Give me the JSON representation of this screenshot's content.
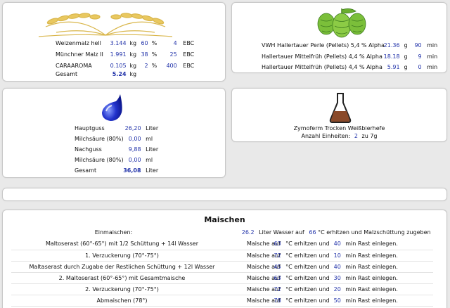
{
  "malt": {
    "rows": [
      {
        "name": "Weizenmalz hell",
        "amount": "3.144",
        "unit": "kg",
        "percent": "60",
        "pct": "%",
        "ebc": "4",
        "ebc_unit": "EBC"
      },
      {
        "name": "Münchner Malz II",
        "amount": "1.991",
        "unit": "kg",
        "percent": "38",
        "pct": "%",
        "ebc": "25",
        "ebc_unit": "EBC"
      },
      {
        "name": "CARAAROMA",
        "amount": "0.105",
        "unit": "kg",
        "percent": "2",
        "pct": "%",
        "ebc": "400",
        "ebc_unit": "EBC"
      }
    ],
    "total_label": "Gesamt",
    "total_value": "5.24",
    "total_unit": "kg"
  },
  "hops": {
    "rows": [
      {
        "name": "VWH Hallertauer Perle (Pellets) 5,4 % Alpha",
        "amount": "21.36",
        "unit": "g",
        "time": "90",
        "time_unit": "min"
      },
      {
        "name": "Hallertauer Mittelfrüh (Pellets) 4,4 % Alpha",
        "amount": "18.18",
        "unit": "g",
        "time": "9",
        "time_unit": "min"
      },
      {
        "name": "Hallertauer Mittelfrüh (Pellets) 4,4 % Alpha",
        "amount": "5.91",
        "unit": "g",
        "time": "0",
        "time_unit": "min"
      }
    ]
  },
  "water": {
    "rows": [
      {
        "label": "Hauptguss",
        "value": "26,20",
        "unit": "Liter"
      },
      {
        "label": "Milchsäure (80%)",
        "value": "0,00",
        "unit": "ml"
      },
      {
        "label": "Nachguss",
        "value": "9,88",
        "unit": "Liter"
      },
      {
        "label": "Milchsäure (80%)",
        "value": "0,00",
        "unit": "ml"
      }
    ],
    "total_label": "Gesamt",
    "total_value": "36,08",
    "total_unit": "Liter"
  },
  "yeast": {
    "name": "Zymoferm Trocken Weißbierhefe",
    "units_label": "Anzahl Einheiten:",
    "units_value": "2",
    "units_suffix": "zu 7g"
  },
  "mash": {
    "title": "Maischen",
    "einmaischen_label": "Einmaischen:",
    "einmaischen_amount": "26.2",
    "einmaischen_text1": "Liter Wasser auf",
    "einmaischen_temp": "66",
    "einmaischen_text2": "°C erhitzen und Malzschüttung zugeben",
    "steps": [
      {
        "name": "Maltoserast (60°-65°) mit 1/2 Schüttung + 14l Wasser",
        "prefix": "Maische auf",
        "temp": "63",
        "mid": "°C erhitzen und",
        "time": "40",
        "suffix": "min Rast einlegen."
      },
      {
        "name": "1. Verzuckerung (70°-75°)",
        "prefix": "Maische auf",
        "temp": "72",
        "mid": "°C erhitzen und",
        "time": "10",
        "suffix": "min Rast einlegen."
      },
      {
        "name": "Maltaserast durch Zugabe der Restlichen Schüttung + 12l Wasser",
        "prefix": "Maische auf",
        "temp": "45",
        "mid": "°C erhitzen und",
        "time": "40",
        "suffix": "min Rast einlegen."
      },
      {
        "name": "2. Maltoserast (60°-65°) mit Gesamtmaische",
        "prefix": "Maische auf",
        "temp": "63",
        "mid": "°C erhitzen und",
        "time": "30",
        "suffix": "min Rast einlegen."
      },
      {
        "name": "2. Verzuckerung (70°-75°)",
        "prefix": "Maische auf",
        "temp": "72",
        "mid": "°C erhitzen und",
        "time": "20",
        "suffix": "min Rast einlegen."
      },
      {
        "name": "Abmaischen (78°)",
        "prefix": "Maische auf",
        "temp": "78",
        "mid": "°C erhitzen und",
        "time": "50",
        "suffix": "min Rast einlegen."
      }
    ]
  },
  "icons": {
    "malt": "wheat-icon",
    "hops": "hops-icon",
    "water": "water-drop-icon",
    "yeast": "flask-icon"
  },
  "colors": {
    "value_blue": "#2233aa"
  }
}
